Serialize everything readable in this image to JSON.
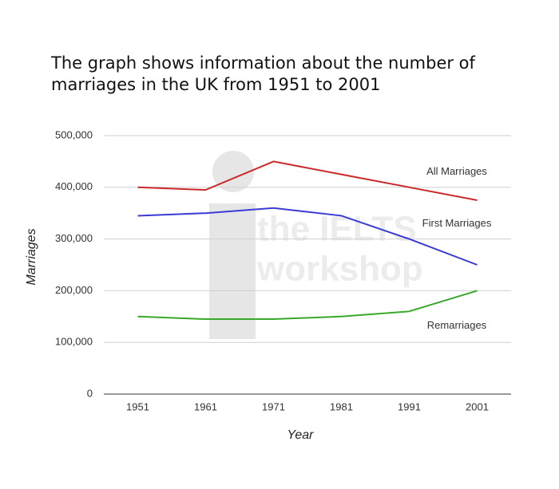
{
  "chart_data": {
    "type": "line",
    "title": "The graph shows information about the number of marriages in the UK from 1951 to 2001",
    "x_label": "Year",
    "y_label": "Marriages",
    "watermark": [
      "the IELTS",
      "workshop"
    ],
    "categories": [
      "1951",
      "1961",
      "1971",
      "1981",
      "1991",
      "2001"
    ],
    "series": [
      {
        "name": "All Marriages",
        "color": "#cc2a2a",
        "values": [
          400000,
          395000,
          450000,
          425000,
          400000,
          375000
        ]
      },
      {
        "name": "First  Marriages",
        "color": "#3a3ad6",
        "values": [
          345000,
          350000,
          360000,
          345000,
          300000,
          250000
        ]
      },
      {
        "name": "Remarriages",
        "color": "#3aa82a",
        "values": [
          150000,
          145000,
          145000,
          150000,
          160000,
          200000
        ]
      }
    ],
    "ylim": [
      0,
      500000
    ],
    "yticks": [
      0,
      {
        "value": 100000,
        "label": "100,000"
      },
      {
        "value": 200000,
        "label": "200,000"
      },
      {
        "value": 300000,
        "label": "300,000"
      },
      {
        "value": 400000,
        "label": "400,000"
      },
      {
        "value": 500000,
        "label": "500,000"
      }
    ],
    "grid": true
  }
}
